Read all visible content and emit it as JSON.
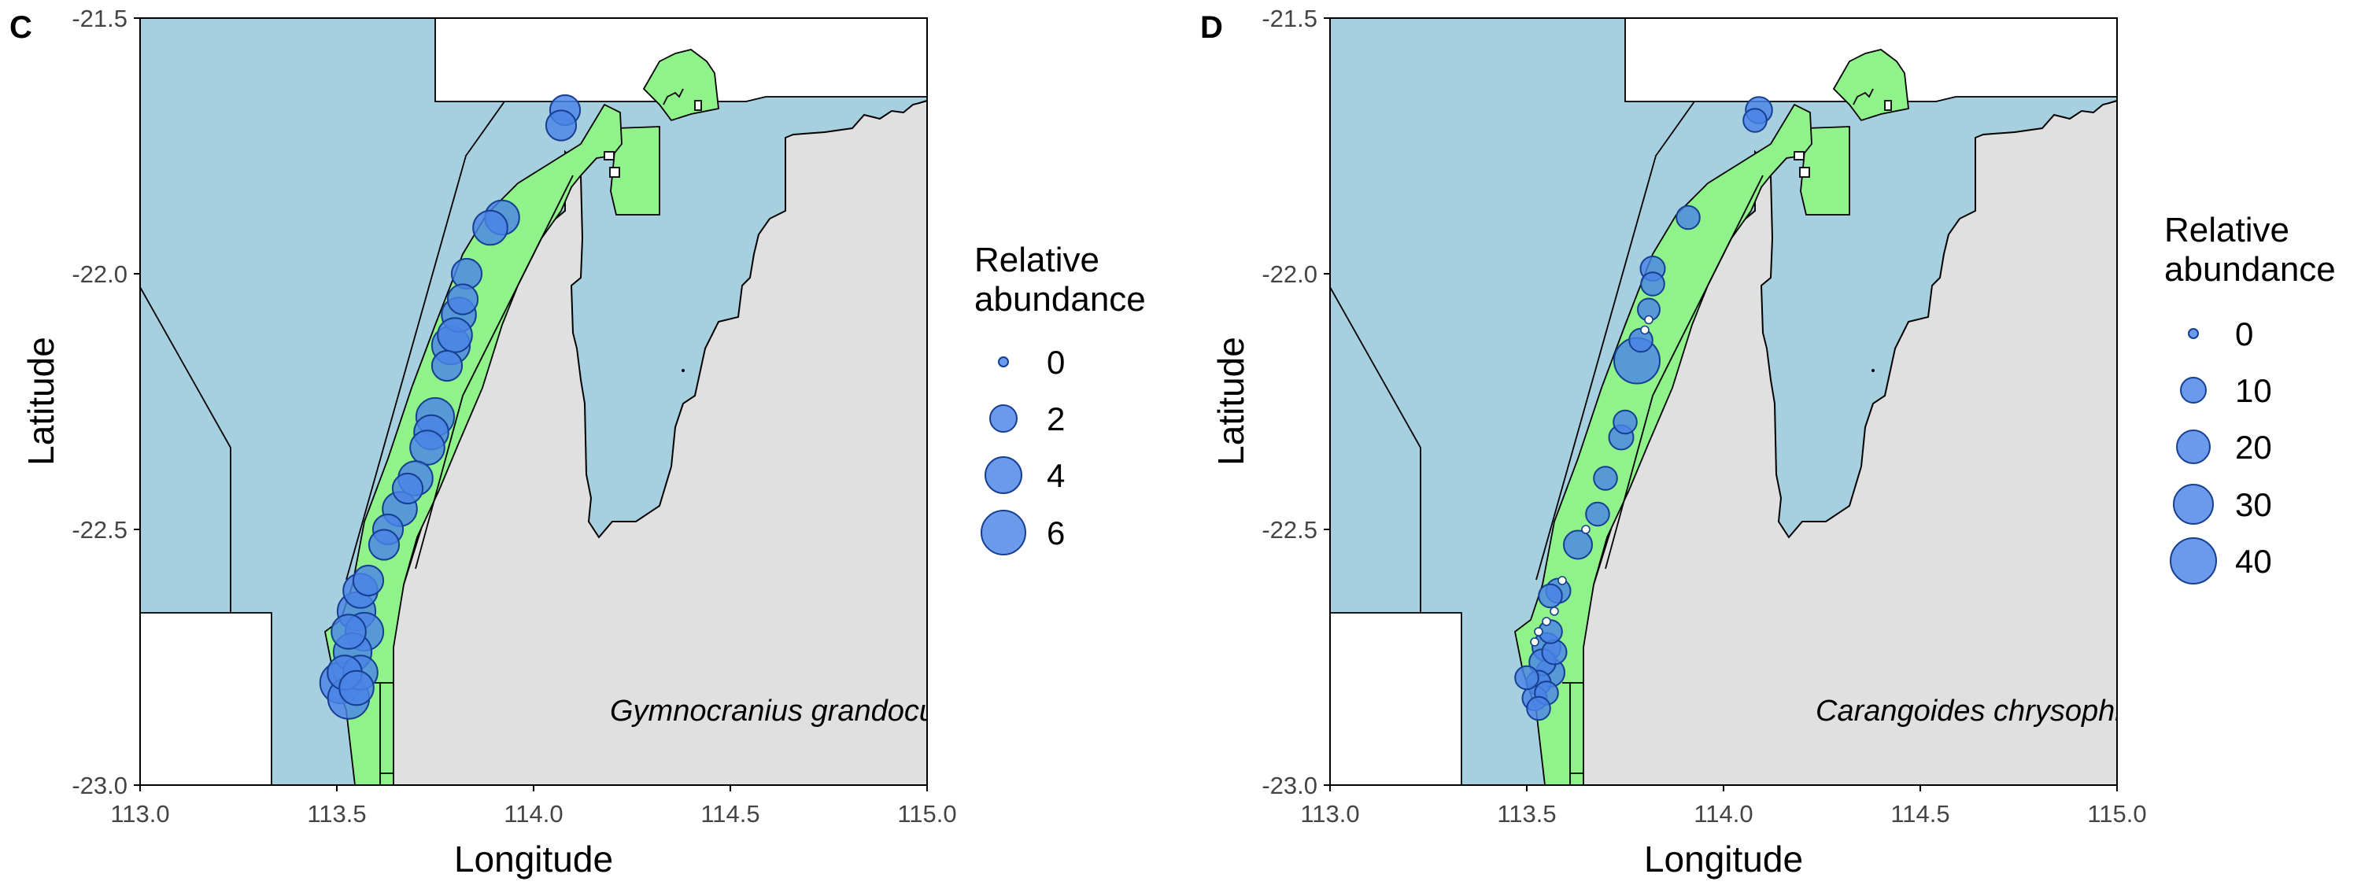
{
  "panels": [
    {
      "letter": "C",
      "species": "Gymnocranius grandoculis",
      "xlabel": "Longitude",
      "ylabel": "Latitude",
      "xticks": [
        "113.0",
        "113.5",
        "114.0",
        "114.5",
        "115.0"
      ],
      "yticks": [
        "-21.5",
        "-22.0",
        "-22.5",
        "-23.0"
      ],
      "legend": {
        "title_line1": "Relative",
        "title_line2": "abundance",
        "levels": [
          "0",
          "2",
          "4",
          "6"
        ]
      }
    },
    {
      "letter": "D",
      "species": "Carangoides chrysophrys",
      "xlabel": "Longitude",
      "ylabel": "Latitude",
      "xticks": [
        "113.0",
        "113.5",
        "114.0",
        "114.5",
        "115.0"
      ],
      "yticks": [
        "-21.5",
        "-22.0",
        "-22.5",
        "-23.0"
      ],
      "legend": {
        "title_line1": "Relative",
        "title_line2": "abundance",
        "levels": [
          "0",
          "10",
          "20",
          "30",
          "40"
        ]
      }
    }
  ],
  "colors": {
    "ocean": "#a6cfdf",
    "land": "#e0e0e0",
    "marine_park": "#90f28a",
    "point_fill": "#4a84e6",
    "point_stroke": "#173f91"
  },
  "chart_data": [
    {
      "type": "scatter",
      "panel": "C",
      "xlabel": "Longitude",
      "ylabel": "Latitude",
      "xlim": [
        113.0,
        115.0
      ],
      "ylim": [
        -23.0,
        -21.5
      ],
      "size_legend": [
        0,
        2,
        4,
        6
      ],
      "points": [
        {
          "x": 114.08,
          "y": -21.68,
          "v": 2
        },
        {
          "x": 114.07,
          "y": -21.71,
          "v": 2
        },
        {
          "x": 113.92,
          "y": -21.89,
          "v": 3
        },
        {
          "x": 113.89,
          "y": -21.91,
          "v": 3
        },
        {
          "x": 113.83,
          "y": -22.0,
          "v": 2
        },
        {
          "x": 113.82,
          "y": -22.05,
          "v": 2
        },
        {
          "x": 113.81,
          "y": -22.08,
          "v": 3
        },
        {
          "x": 113.8,
          "y": -22.12,
          "v": 3
        },
        {
          "x": 113.79,
          "y": -22.14,
          "v": 4
        },
        {
          "x": 113.78,
          "y": -22.18,
          "v": 2
        },
        {
          "x": 113.75,
          "y": -22.28,
          "v": 4
        },
        {
          "x": 113.74,
          "y": -22.31,
          "v": 3
        },
        {
          "x": 113.73,
          "y": -22.34,
          "v": 3
        },
        {
          "x": 113.7,
          "y": -22.4,
          "v": 3
        },
        {
          "x": 113.68,
          "y": -22.42,
          "v": 2
        },
        {
          "x": 113.66,
          "y": -22.46,
          "v": 3
        },
        {
          "x": 113.63,
          "y": -22.5,
          "v": 2
        },
        {
          "x": 113.62,
          "y": -22.53,
          "v": 2
        },
        {
          "x": 113.58,
          "y": -22.6,
          "v": 2
        },
        {
          "x": 113.56,
          "y": -22.62,
          "v": 3
        },
        {
          "x": 113.55,
          "y": -22.66,
          "v": 4
        },
        {
          "x": 113.57,
          "y": -22.7,
          "v": 4
        },
        {
          "x": 113.53,
          "y": -22.7,
          "v": 3
        },
        {
          "x": 113.54,
          "y": -22.74,
          "v": 4
        },
        {
          "x": 113.56,
          "y": -22.78,
          "v": 3
        },
        {
          "x": 113.52,
          "y": -22.78,
          "v": 3
        },
        {
          "x": 113.51,
          "y": -22.8,
          "v": 5
        },
        {
          "x": 113.53,
          "y": -22.83,
          "v": 5
        },
        {
          "x": 113.55,
          "y": -22.81,
          "v": 3
        }
      ]
    },
    {
      "type": "scatter",
      "panel": "D",
      "xlabel": "Longitude",
      "ylabel": "Latitude",
      "xlim": [
        113.0,
        115.0
      ],
      "ylim": [
        -23.0,
        -21.5
      ],
      "size_legend": [
        0,
        10,
        20,
        30,
        40
      ],
      "points": [
        {
          "x": 114.09,
          "y": -21.68,
          "v": 8
        },
        {
          "x": 114.08,
          "y": -21.7,
          "v": 5
        },
        {
          "x": 113.91,
          "y": -21.89,
          "v": 5
        },
        {
          "x": 113.82,
          "y": -21.99,
          "v": 6
        },
        {
          "x": 113.82,
          "y": -22.02,
          "v": 5
        },
        {
          "x": 113.81,
          "y": -22.07,
          "v": 4
        },
        {
          "x": 113.81,
          "y": -22.09,
          "v": 0
        },
        {
          "x": 113.8,
          "y": -22.11,
          "v": 0
        },
        {
          "x": 113.79,
          "y": -22.13,
          "v": 5
        },
        {
          "x": 113.78,
          "y": -22.17,
          "v": 40
        },
        {
          "x": 113.75,
          "y": -22.29,
          "v": 5
        },
        {
          "x": 113.74,
          "y": -22.32,
          "v": 6
        },
        {
          "x": 113.7,
          "y": -22.4,
          "v": 5
        },
        {
          "x": 113.68,
          "y": -22.47,
          "v": 5
        },
        {
          "x": 113.65,
          "y": -22.5,
          "v": 0
        },
        {
          "x": 113.63,
          "y": -22.53,
          "v": 10
        },
        {
          "x": 113.59,
          "y": -22.6,
          "v": 0
        },
        {
          "x": 113.58,
          "y": -22.62,
          "v": 6
        },
        {
          "x": 113.56,
          "y": -22.63,
          "v": 5
        },
        {
          "x": 113.57,
          "y": -22.66,
          "v": 0
        },
        {
          "x": 113.55,
          "y": -22.68,
          "v": 0
        },
        {
          "x": 113.53,
          "y": -22.7,
          "v": 0
        },
        {
          "x": 113.56,
          "y": -22.7,
          "v": 5
        },
        {
          "x": 113.52,
          "y": -22.72,
          "v": 0
        },
        {
          "x": 113.55,
          "y": -22.73,
          "v": 10
        },
        {
          "x": 113.57,
          "y": -22.74,
          "v": 6
        },
        {
          "x": 113.54,
          "y": -22.76,
          "v": 8
        },
        {
          "x": 113.56,
          "y": -22.78,
          "v": 10
        },
        {
          "x": 113.5,
          "y": -22.79,
          "v": 5
        },
        {
          "x": 113.53,
          "y": -22.8,
          "v": 6
        },
        {
          "x": 113.52,
          "y": -22.83,
          "v": 6
        },
        {
          "x": 113.55,
          "y": -22.82,
          "v": 5
        },
        {
          "x": 113.53,
          "y": -22.85,
          "v": 5
        }
      ]
    }
  ]
}
